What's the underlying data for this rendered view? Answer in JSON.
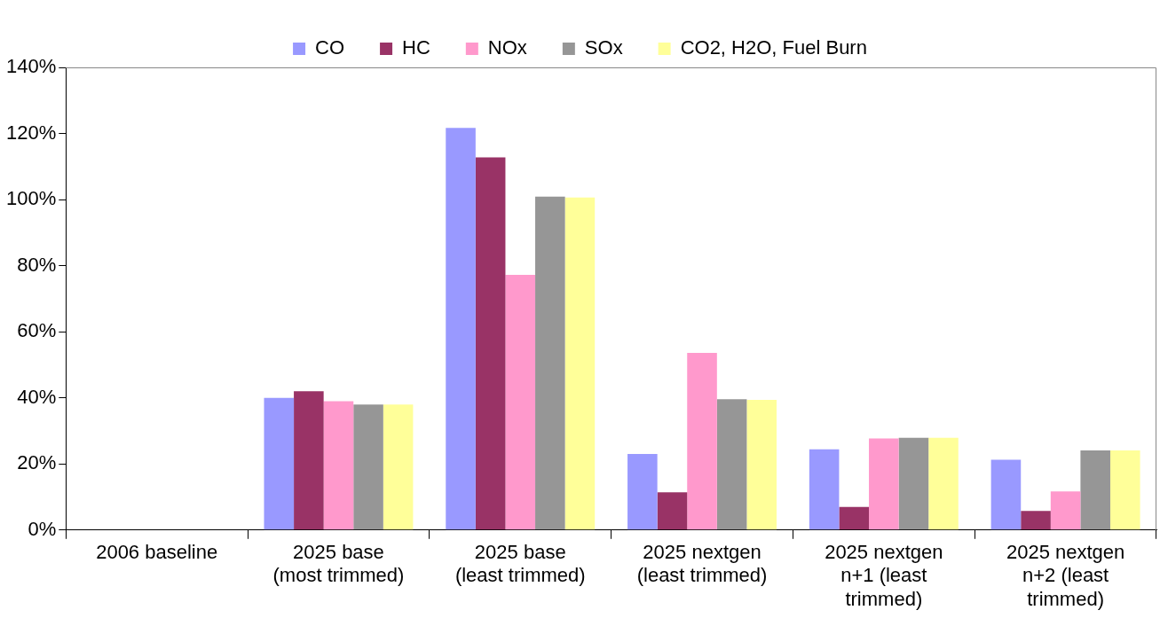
{
  "chart_data": {
    "type": "bar",
    "categories": [
      "2006 baseline",
      "2025 base\n(most trimmed)",
      "2025 base\n(least trimmed)",
      "2025 nextgen\n(least trimmed)",
      "2025 nextgen\nn+1 (least\ntrimmed)",
      "2025 nextgen\nn+2 (least\ntrimmed)"
    ],
    "series": [
      {
        "name": "CO",
        "color": "#9999ff",
        "values": [
          null,
          40,
          121.7,
          23,
          24.4,
          21.3
        ]
      },
      {
        "name": "HC",
        "color": "#993366",
        "values": [
          null,
          42,
          112.8,
          11.4,
          7,
          5.8
        ]
      },
      {
        "name": "NOx",
        "color": "#ff99cc",
        "values": [
          null,
          39,
          77.2,
          53.6,
          27.7,
          11.7
        ]
      },
      {
        "name": "SOx",
        "color": "#969696",
        "values": [
          null,
          38,
          100.9,
          39.6,
          27.9,
          24.1
        ]
      },
      {
        "name": "CO2, H2O, Fuel Burn",
        "color": "#ffff99",
        "values": [
          null,
          38,
          100.6,
          39.4,
          27.9,
          24.1
        ]
      }
    ],
    "ylim": [
      0,
      140
    ],
    "yticks": [
      {
        "value": 0,
        "label": "0%"
      },
      {
        "value": 20,
        "label": "20%"
      },
      {
        "value": 40,
        "label": "40%"
      },
      {
        "value": 60,
        "label": "60%"
      },
      {
        "value": 80,
        "label": "80%"
      },
      {
        "value": 100,
        "label": "100%"
      },
      {
        "value": 120,
        "label": "120%"
      },
      {
        "value": 140,
        "label": "140%"
      }
    ],
    "grid": false,
    "legend": "top"
  }
}
